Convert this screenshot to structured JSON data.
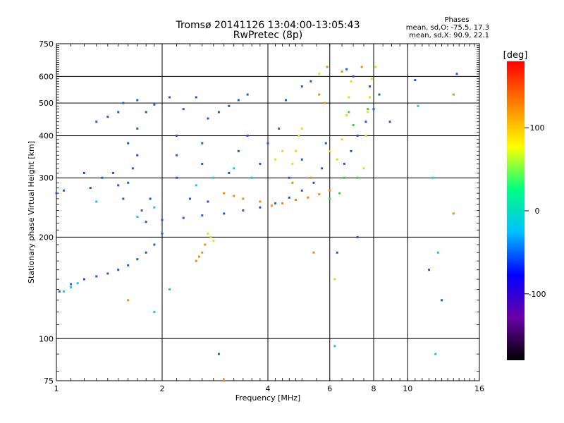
{
  "chart_data": {
    "type": "scatter",
    "title": "Tromsø 20141126 13:04:00-13:05:43",
    "subtitle": "RwPretec (8p)",
    "stats": {
      "heading": "Phases",
      "line1": "mean, sd,O: -75.5, 17.3",
      "line2": "mean, sd,X:  90.9, 22.1"
    },
    "xlabel": "Frequency [MHz]",
    "ylabel": "Stationary phase Virtual Height [km]",
    "xscale": "log",
    "yscale": "log",
    "xlim": [
      1,
      16
    ],
    "ylim": [
      75,
      750
    ],
    "xticks": [
      1,
      2,
      4,
      6,
      8,
      10,
      16
    ],
    "yticks": [
      75,
      100,
      200,
      300,
      400,
      500,
      600,
      750
    ],
    "grid": true,
    "colorbar": {
      "label": "[deg]",
      "range": [
        -180,
        180
      ],
      "ticks": [
        100,
        0,
        -100
      ],
      "colors": [
        "#000000",
        "#6a00a8",
        "#0000ff",
        "#00c0ff",
        "#00ff80",
        "#ffff00",
        "#ff8000",
        "#ff0000"
      ]
    },
    "series": [
      {
        "color": "#1e5adc",
        "points": [
          [
            1.02,
            138
          ],
          [
            1.1,
            145
          ],
          [
            1.2,
            150
          ],
          [
            1.3,
            153
          ],
          [
            1.4,
            156
          ],
          [
            1.5,
            160
          ],
          [
            1.6,
            165
          ],
          [
            1.7,
            172
          ],
          [
            1.8,
            180
          ],
          [
            1.9,
            190
          ],
          [
            2.0,
            205
          ],
          [
            1.8,
            222
          ],
          [
            2.0,
            225
          ],
          [
            2.3,
            228
          ],
          [
            2.6,
            232
          ],
          [
            3.0,
            235
          ],
          [
            3.4,
            240
          ],
          [
            3.8,
            245
          ],
          [
            4.2,
            252
          ],
          [
            4.6,
            262
          ],
          [
            5.0,
            275
          ],
          [
            5.4,
            290
          ],
          [
            5.7,
            320
          ],
          [
            5.85,
            380
          ],
          [
            1.55,
            260
          ],
          [
            1.6,
            290
          ],
          [
            1.65,
            320
          ],
          [
            1.7,
            350
          ],
          [
            1.6,
            380
          ],
          [
            1.7,
            420
          ],
          [
            1.8,
            470
          ],
          [
            1.55,
            500
          ],
          [
            1.7,
            510
          ],
          [
            1.9,
            495
          ],
          [
            2.1,
            520
          ],
          [
            2.2,
            300
          ],
          [
            2.2,
            350
          ],
          [
            2.2,
            400
          ],
          [
            2.3,
            480
          ],
          [
            2.5,
            520
          ],
          [
            2.6,
            330
          ],
          [
            2.6,
            380
          ],
          [
            2.7,
            450
          ],
          [
            2.9,
            470
          ],
          [
            3.1,
            490
          ],
          [
            3.3,
            510
          ],
          [
            3.5,
            530
          ],
          [
            3.1,
            310
          ],
          [
            3.3,
            360
          ],
          [
            3.5,
            400
          ],
          [
            3.8,
            330
          ],
          [
            4.0,
            380
          ],
          [
            4.3,
            420
          ],
          [
            4.6,
            300
          ],
          [
            5.0,
            340
          ],
          [
            4.5,
            510
          ],
          [
            5.0,
            560
          ],
          [
            5.3,
            580
          ],
          [
            1.35,
            300
          ],
          [
            1.45,
            310
          ],
          [
            1.5,
            285
          ],
          [
            1.25,
            280
          ],
          [
            1.3,
            440
          ],
          [
            1.4,
            455
          ],
          [
            1.5,
            470
          ],
          [
            1.75,
            240
          ],
          [
            1.85,
            260
          ],
          [
            2.4,
            260
          ],
          [
            2.7,
            255
          ],
          [
            6.6,
            330
          ],
          [
            6.9,
            360
          ],
          [
            7.2,
            400
          ],
          [
            7.6,
            440
          ],
          [
            8.0,
            480
          ],
          [
            8.3,
            530
          ],
          [
            7.0,
            600
          ],
          [
            7.8,
            560
          ],
          [
            6.7,
            630
          ],
          [
            1.0,
            270
          ],
          [
            1.05,
            275
          ],
          [
            1.2,
            310
          ],
          [
            2.9,
            90
          ],
          [
            12.5,
            130
          ],
          [
            11.5,
            160
          ],
          [
            8.9,
            440
          ],
          [
            10.5,
            585
          ],
          [
            13.8,
            610
          ],
          [
            7.2,
            200
          ],
          [
            6.3,
            180
          ]
        ]
      },
      {
        "color": "#19c8e6",
        "points": [
          [
            1.05,
            138
          ],
          [
            1.1,
            142
          ],
          [
            1.15,
            146
          ],
          [
            1.7,
            230
          ],
          [
            1.9,
            245
          ],
          [
            2.5,
            285
          ],
          [
            2.8,
            300
          ],
          [
            3.2,
            320
          ],
          [
            3.6,
            300
          ],
          [
            1.9,
            120
          ],
          [
            10.7,
            490
          ],
          [
            11.8,
            300
          ],
          [
            12.2,
            180
          ],
          [
            12.0,
            90
          ],
          [
            6.2,
            95
          ],
          [
            1.3,
            255
          ],
          [
            2.1,
            140
          ]
        ]
      },
      {
        "color": "#f08c14",
        "points": [
          [
            2.5,
            170
          ],
          [
            2.55,
            175
          ],
          [
            2.6,
            180
          ],
          [
            2.65,
            190
          ],
          [
            3.0,
            270
          ],
          [
            3.2,
            265
          ],
          [
            3.4,
            260
          ],
          [
            3.8,
            255
          ],
          [
            4.1,
            248
          ],
          [
            4.4,
            252
          ],
          [
            4.8,
            258
          ],
          [
            5.2,
            262
          ],
          [
            5.6,
            268
          ],
          [
            6.0,
            275
          ],
          [
            4.7,
            290
          ],
          [
            5.3,
            300
          ],
          [
            5.8,
            500
          ],
          [
            5.6,
            530
          ],
          [
            5.9,
            640
          ],
          [
            6.5,
            620
          ],
          [
            7.4,
            640
          ],
          [
            13.5,
            530
          ],
          [
            13.5,
            235
          ],
          [
            3.0,
            75
          ],
          [
            5.4,
            180
          ],
          [
            1.6,
            130
          ]
        ]
      },
      {
        "color": "#d2e61e",
        "points": [
          [
            4.7,
            330
          ],
          [
            4.8,
            360
          ],
          [
            4.9,
            400
          ],
          [
            5.0,
            420
          ],
          [
            6.0,
            360
          ],
          [
            6.3,
            340
          ],
          [
            6.5,
            390
          ],
          [
            6.7,
            460
          ],
          [
            6.8,
            520
          ],
          [
            6.9,
            580
          ],
          [
            7.5,
            320
          ],
          [
            7.6,
            400
          ],
          [
            7.7,
            470
          ],
          [
            7.8,
            520
          ],
          [
            7.9,
            590
          ],
          [
            8.1,
            640
          ],
          [
            4.2,
            340
          ],
          [
            4.4,
            360
          ],
          [
            5.6,
            610
          ],
          [
            6.2,
            150
          ],
          [
            2.7,
            205
          ],
          [
            2.75,
            200
          ],
          [
            2.8,
            195
          ]
        ]
      },
      {
        "color": "#3cd246",
        "points": [
          [
            6.4,
            270
          ],
          [
            6.6,
            300
          ],
          [
            6.8,
            470
          ],
          [
            7.0,
            430
          ],
          [
            7.2,
            300
          ],
          [
            7.7,
            480
          ],
          [
            6.0,
            260
          ]
        ]
      }
    ]
  }
}
